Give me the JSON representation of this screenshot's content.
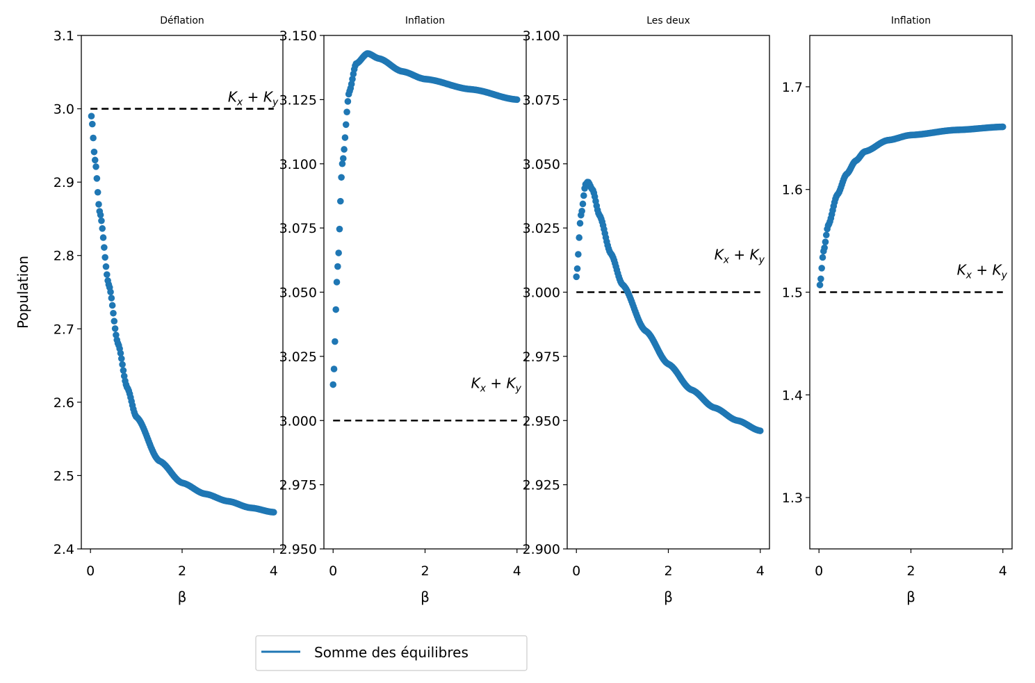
{
  "chart_data": [
    {
      "type": "scatter",
      "title": "Déflation",
      "xlabel": "β",
      "ylabel": "Population",
      "xlim": [
        -0.2,
        4.2
      ],
      "ylim": [
        2.4,
        3.1
      ],
      "xticks": [
        0,
        2,
        4
      ],
      "yticks": [
        2.4,
        2.5,
        2.6,
        2.7,
        2.8,
        2.9,
        3.0,
        3.1
      ],
      "ytick_labels": [
        "2.4",
        "2.5",
        "2.6",
        "2.7",
        "2.8",
        "2.9",
        "3.0",
        "3.1"
      ],
      "reference_line": {
        "value": 3.0,
        "x_range": [
          0,
          4
        ],
        "label": "$K_x + K_y$",
        "label_xy": [
          3.0,
          3.0
        ]
      },
      "series": [
        {
          "name": "Somme des équilibres",
          "curve": "decay",
          "x_start": 0.02,
          "x_end": 4.0,
          "y_start": 2.99,
          "y_end": 2.45,
          "points": [
            [
              0.02,
              2.99
            ],
            [
              0.1,
              2.93
            ],
            [
              0.2,
              2.86
            ],
            [
              0.4,
              2.76
            ],
            [
              0.6,
              2.68
            ],
            [
              0.8,
              2.62
            ],
            [
              1.0,
              2.58
            ],
            [
              1.5,
              2.52
            ],
            [
              2.0,
              2.49
            ],
            [
              2.5,
              2.475
            ],
            [
              3.0,
              2.465
            ],
            [
              3.5,
              2.456
            ],
            [
              4.0,
              2.45
            ]
          ]
        }
      ]
    },
    {
      "type": "scatter",
      "title": "Inflation",
      "xlabel": "β",
      "ylabel": "",
      "xlim": [
        -0.2,
        4.2
      ],
      "ylim": [
        2.95,
        3.15
      ],
      "xticks": [
        0,
        2,
        4
      ],
      "yticks": [
        2.95,
        2.975,
        3.0,
        3.025,
        3.05,
        3.075,
        3.1,
        3.125,
        3.15
      ],
      "ytick_labels": [
        "2.950",
        "2.975",
        "3.000",
        "3.025",
        "3.050",
        "3.075",
        "3.100",
        "3.125",
        "3.150"
      ],
      "reference_line": {
        "value": 3.0,
        "x_range": [
          0,
          4
        ],
        "label": "$K_x + K_y$",
        "label_xy": [
          3.0,
          3.01
        ]
      },
      "series": [
        {
          "name": "Somme des équilibres",
          "curve": "rise-peak-decay",
          "x_start": 0.0,
          "x_end": 4.0,
          "y_start": 3.014,
          "y_peak": 3.143,
          "x_peak": 0.75,
          "y_end": 3.125,
          "points": [
            [
              0.0,
              3.014
            ],
            [
              0.1,
              3.06
            ],
            [
              0.2,
              3.1
            ],
            [
              0.35,
              3.128
            ],
            [
              0.5,
              3.139
            ],
            [
              0.75,
              3.143
            ],
            [
              1.0,
              3.141
            ],
            [
              1.5,
              3.136
            ],
            [
              2.0,
              3.133
            ],
            [
              3.0,
              3.129
            ],
            [
              4.0,
              3.125
            ]
          ]
        }
      ]
    },
    {
      "type": "scatter",
      "title": "Les deux",
      "xlabel": "β",
      "ylabel": "",
      "xlim": [
        -0.2,
        4.2
      ],
      "ylim": [
        2.9,
        3.1
      ],
      "xticks": [
        0,
        2,
        4
      ],
      "yticks": [
        2.9,
        2.925,
        2.95,
        2.975,
        3.0,
        3.025,
        3.05,
        3.075,
        3.1
      ],
      "ytick_labels": [
        "2.900",
        "2.925",
        "2.950",
        "2.975",
        "3.000",
        "3.025",
        "3.050",
        "3.075",
        "3.100"
      ],
      "reference_line": {
        "value": 3.0,
        "x_range": [
          0,
          4
        ],
        "label": "$K_x + K_y$",
        "label_xy": [
          3.0,
          3.01
        ]
      },
      "series": [
        {
          "name": "Somme des équilibres",
          "curve": "rise-peak-decay",
          "x_start": 0.0,
          "x_end": 4.0,
          "y_start": 3.006,
          "y_peak": 3.043,
          "x_peak": 0.25,
          "y_end": 2.946,
          "points": [
            [
              0.0,
              3.006
            ],
            [
              0.1,
              3.03
            ],
            [
              0.2,
              3.042
            ],
            [
              0.25,
              3.043
            ],
            [
              0.35,
              3.04
            ],
            [
              0.5,
              3.03
            ],
            [
              0.75,
              3.015
            ],
            [
              1.0,
              3.003
            ],
            [
              1.5,
              2.985
            ],
            [
              2.0,
              2.972
            ],
            [
              2.5,
              2.962
            ],
            [
              3.0,
              2.955
            ],
            [
              3.5,
              2.95
            ],
            [
              4.0,
              2.946
            ]
          ]
        }
      ]
    },
    {
      "type": "scatter",
      "title": "Inflation",
      "xlabel": "β",
      "ylabel": "",
      "xlim": [
        -0.2,
        4.2
      ],
      "ylim": [
        1.25,
        1.75
      ],
      "xticks": [
        0,
        2,
        4
      ],
      "yticks": [
        1.3,
        1.4,
        1.5,
        1.6,
        1.7
      ],
      "ytick_labels": [
        "1.3",
        "1.4",
        "1.5",
        "1.6",
        "1.7"
      ],
      "reference_line": {
        "value": 1.5,
        "x_range": [
          0,
          4
        ],
        "label": "$K_x + K_y$",
        "label_xy": [
          3.0,
          1.51
        ]
      },
      "series": [
        {
          "name": "Somme des équilibres",
          "curve": "saturating-rise",
          "x_start": 0.02,
          "x_end": 4.0,
          "y_start": 1.507,
          "y_end": 1.661,
          "points": [
            [
              0.02,
              1.507
            ],
            [
              0.1,
              1.54
            ],
            [
              0.2,
              1.565
            ],
            [
              0.4,
              1.595
            ],
            [
              0.6,
              1.615
            ],
            [
              0.8,
              1.628
            ],
            [
              1.0,
              1.637
            ],
            [
              1.5,
              1.648
            ],
            [
              2.0,
              1.653
            ],
            [
              3.0,
              1.658
            ],
            [
              4.0,
              1.661
            ]
          ]
        }
      ]
    }
  ],
  "legend": {
    "label": "Somme des équilibres",
    "position": "below",
    "color": "#1f77b4"
  },
  "colors": {
    "series": "#1f77b4",
    "reference": "#000000"
  }
}
